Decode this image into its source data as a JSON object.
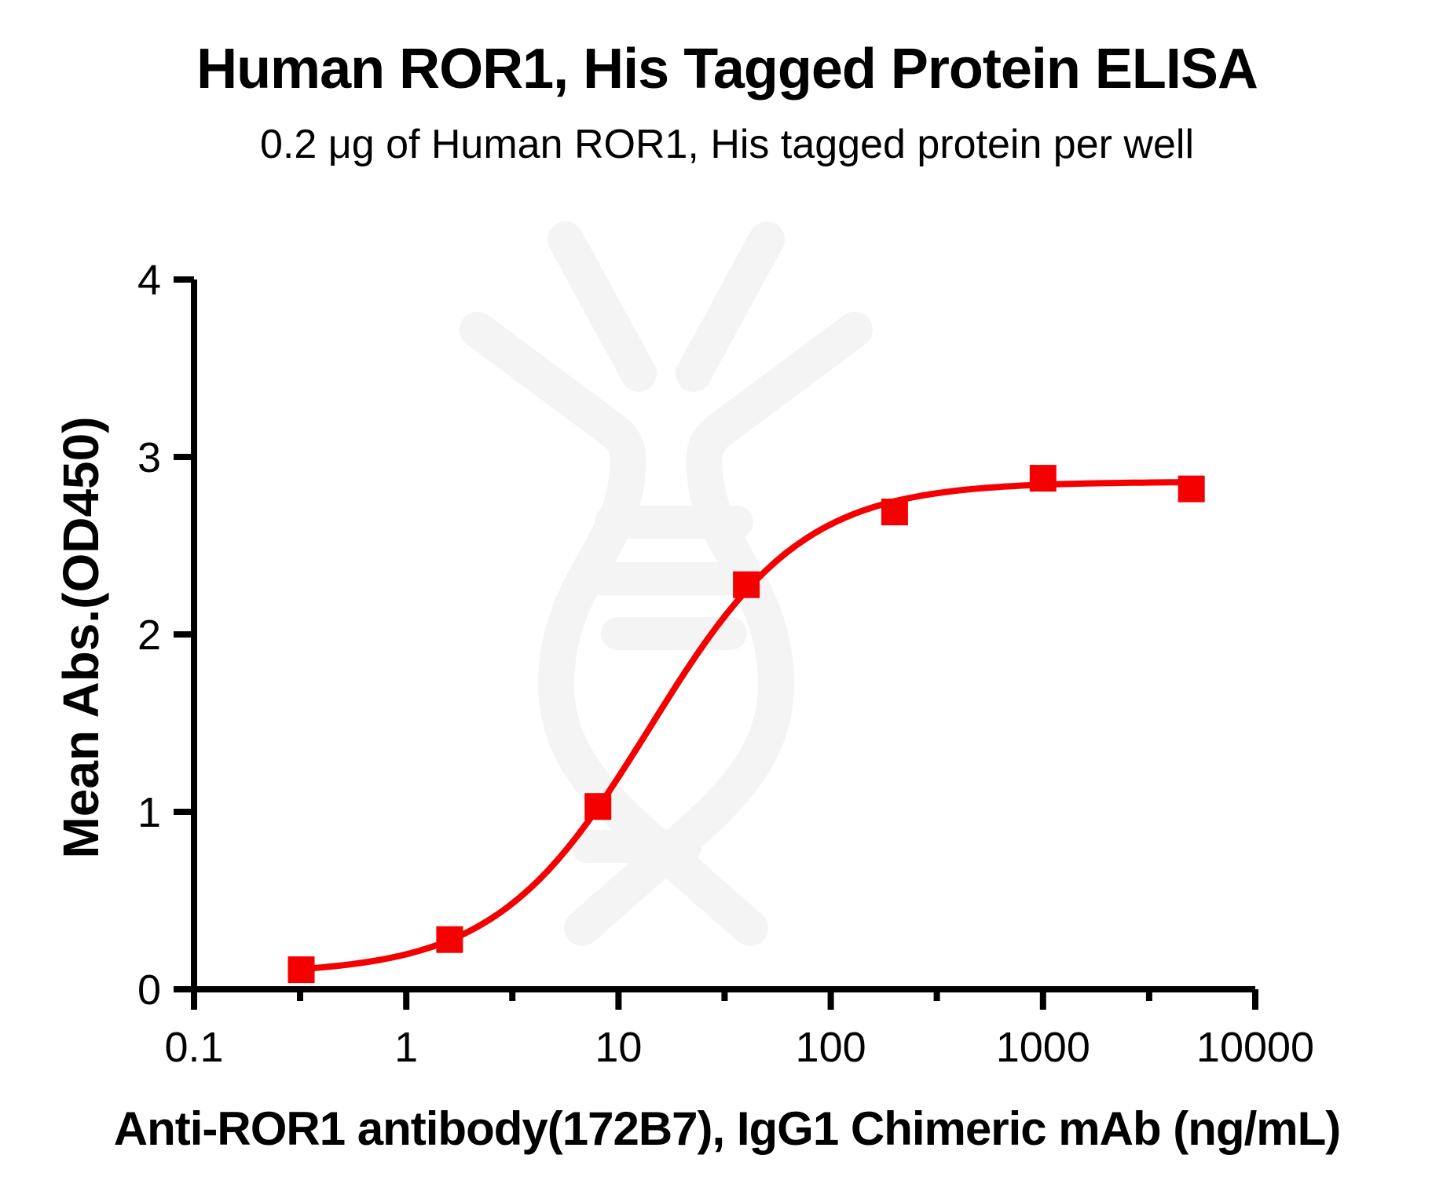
{
  "chart_data": {
    "type": "line",
    "title": "Human ROR1, His Tagged Protein ELISA",
    "subtitle": "0.2 μg of Human ROR1, His tagged protein per well",
    "xlabel": "Anti-ROR1 antibody(172B7), IgG1 Chimeric mAb (ng/mL)",
    "ylabel": "Mean Abs.(OD450)",
    "x_scale": "log10",
    "xlim": [
      0.1,
      10000
    ],
    "ylim": [
      0,
      4
    ],
    "x_ticks": [
      0.1,
      1,
      10,
      100,
      1000,
      10000
    ],
    "x_tick_labels": [
      "0.1",
      "1",
      "10",
      "100",
      "1000",
      "10000"
    ],
    "x_minor_ticks": [
      0.316,
      3.16,
      31.6,
      316,
      3162
    ],
    "y_ticks": [
      0,
      1,
      2,
      3,
      4
    ],
    "y_tick_labels": [
      "0",
      "1",
      "2",
      "3",
      "4"
    ],
    "grid": false,
    "legend": "none",
    "points": [
      {
        "x": 0.32,
        "y": 0.11
      },
      {
        "x": 1.6,
        "y": 0.28
      },
      {
        "x": 8,
        "y": 1.03
      },
      {
        "x": 40,
        "y": 2.28
      },
      {
        "x": 200,
        "y": 2.69
      },
      {
        "x": 1000,
        "y": 2.88
      },
      {
        "x": 5000,
        "y": 2.82
      }
    ],
    "fit_curve": {
      "model": "4PL sigmoid",
      "bottom": 0.085,
      "top": 2.86,
      "ec50": 14,
      "hill": 1.2,
      "x_range": [
        0.32,
        5000
      ]
    },
    "marker": "square",
    "series_color": "#f40000",
    "axis_color": "#000000",
    "text_color": "#000000",
    "watermark_color": "#f4f4f4"
  }
}
